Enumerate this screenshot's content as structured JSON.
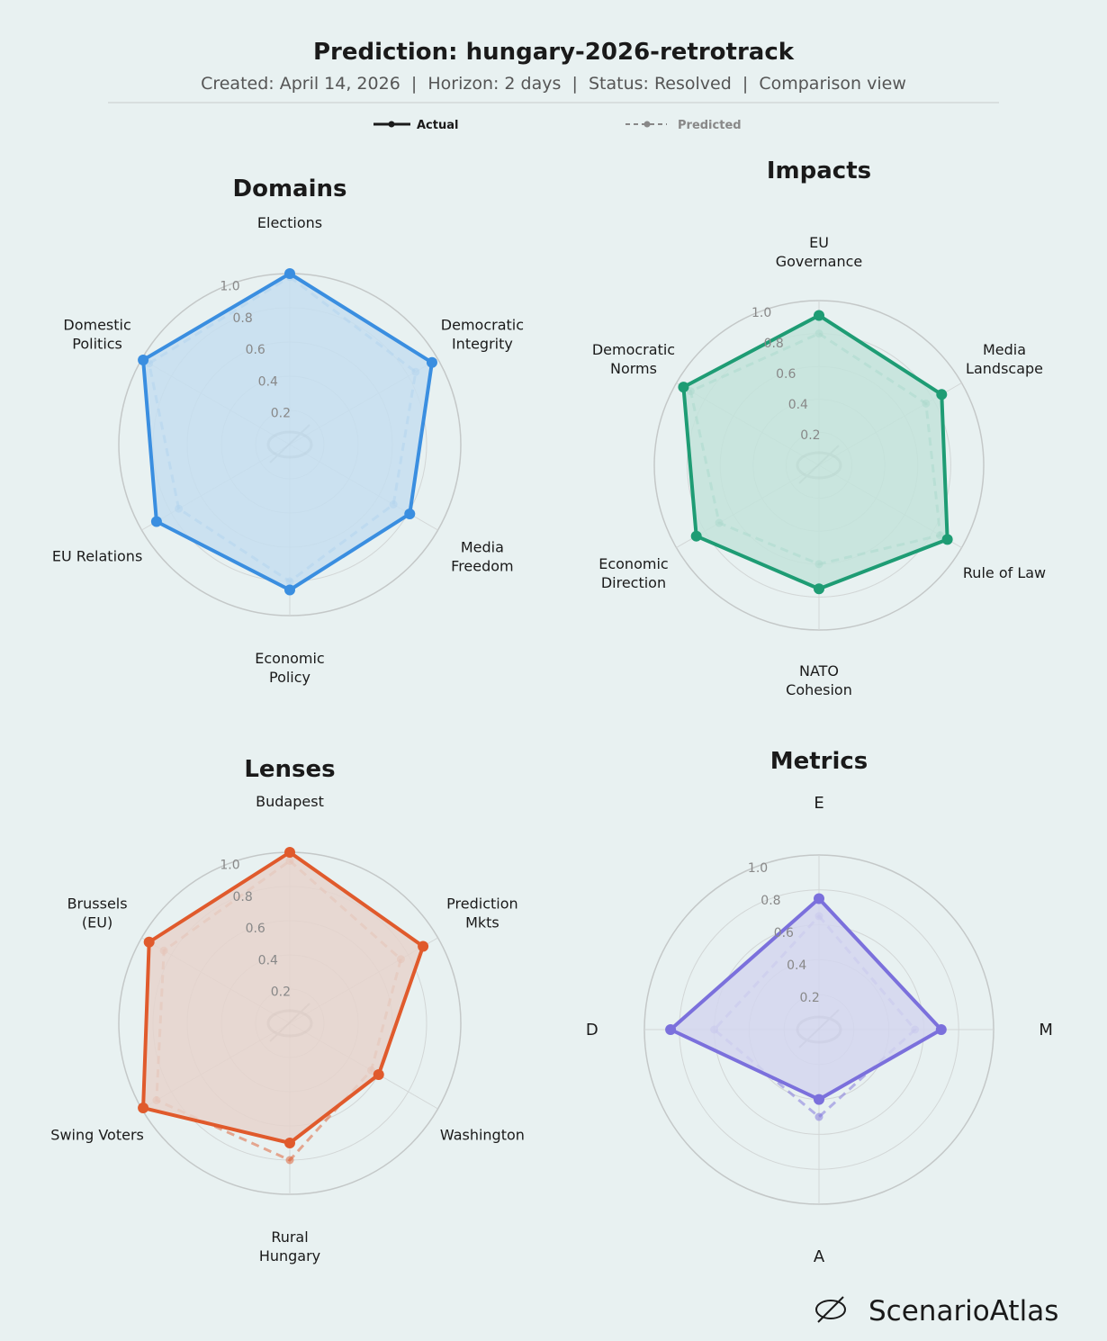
{
  "header": {
    "title": "Prediction: hungary-2026-retrotrack",
    "subtitle": "Created: April 14, 2026  |  Horizon: 2 days  |  Status: Resolved  |  Comparison view"
  },
  "legend": {
    "actual": "Actual",
    "predicted": "Predicted"
  },
  "brand": {
    "name": "ScenarioAtlas"
  },
  "chart_data": [
    {
      "type": "radar",
      "title": "Domains",
      "color": "#3a8ee0",
      "fill": "#c6def0",
      "rlim": [
        0,
        1
      ],
      "rticks": [
        "0.2",
        "0.4",
        "0.6",
        "0.8",
        "1.0"
      ],
      "axes": [
        "Elections",
        "Democratic\nIntegrity",
        "Media\nFreedom",
        "Economic\nPolicy",
        "EU Relations",
        "Domestic\nPolitics"
      ],
      "series": [
        {
          "name": "Actual",
          "values": [
            1.0,
            0.96,
            0.81,
            0.85,
            0.9,
            0.99
          ]
        },
        {
          "name": "Predicted",
          "values": [
            0.98,
            0.85,
            0.7,
            0.8,
            0.75,
            0.95
          ]
        }
      ]
    },
    {
      "type": "radar",
      "title": "Impacts",
      "color": "#1e9c74",
      "fill": "#c3e3da",
      "rlim": [
        0,
        1
      ],
      "rticks": [
        "0.2",
        "0.4",
        "0.6",
        "0.8",
        "1.0"
      ],
      "axes": [
        "EU\nGovernance",
        "Media\nLandscape",
        "Rule of Law",
        "NATO\nCohesion",
        "Economic\nDirection",
        "Democratic\nNorms"
      ],
      "series": [
        {
          "name": "Actual",
          "values": [
            0.91,
            0.86,
            0.9,
            0.75,
            0.86,
            0.95
          ]
        },
        {
          "name": "Predicted",
          "values": [
            0.8,
            0.75,
            0.85,
            0.6,
            0.7,
            0.9
          ]
        }
      ]
    },
    {
      "type": "radar",
      "title": "Lenses",
      "color": "#e05a2c",
      "fill": "#e6d4cc",
      "rlim": [
        0,
        1
      ],
      "rticks": [
        "0.2",
        "0.4",
        "0.6",
        "0.8",
        "1.0"
      ],
      "axes": [
        "Budapest",
        "Prediction\nMkts",
        "Washington",
        "Rural\nHungary",
        "Swing Voters",
        "Brussels\n(EU)"
      ],
      "series": [
        {
          "name": "Actual",
          "values": [
            1.0,
            0.9,
            0.6,
            0.7,
            0.99,
            0.95
          ]
        },
        {
          "name": "Predicted",
          "values": [
            0.95,
            0.75,
            0.55,
            0.8,
            0.9,
            0.85
          ]
        }
      ]
    },
    {
      "type": "radar",
      "title": "Metrics",
      "color": "#7b70dc",
      "fill": "#d3d6ee",
      "rlim": [
        0,
        1
      ],
      "rticks": [
        "0.2",
        "0.4",
        "0.6",
        "0.8",
        "1.0"
      ],
      "axes": [
        "E",
        "M",
        "A",
        "D"
      ],
      "series": [
        {
          "name": "Actual",
          "values": [
            0.75,
            0.7,
            0.4,
            0.85
          ]
        },
        {
          "name": "Predicted",
          "values": [
            0.65,
            0.55,
            0.5,
            0.6
          ]
        }
      ]
    }
  ]
}
